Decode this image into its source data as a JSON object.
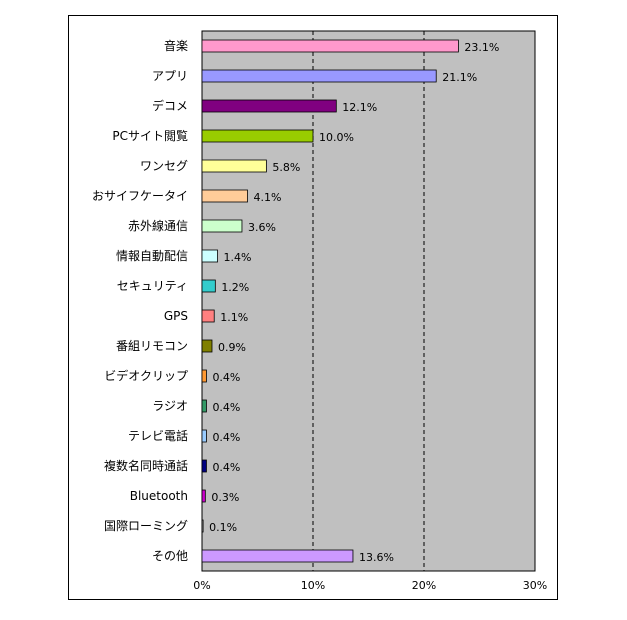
{
  "chart_data": {
    "type": "bar",
    "orientation": "horizontal",
    "title": "",
    "xlabel": "",
    "ylabel": "",
    "xlim": [
      0,
      30
    ],
    "xticks": [
      "0%",
      "10%",
      "20%",
      "30%"
    ],
    "grid": "vertical dashed at 10% and 20%",
    "plot_background": "#c0c0c0",
    "categories": [
      "音楽",
      "アプリ",
      "デコメ",
      "PCサイト閲覧",
      "ワンセグ",
      "おサイフケータイ",
      "赤外線通信",
      "情報自動配信",
      "セキュリティ",
      "GPS",
      "番組リモコン",
      "ビデオクリップ",
      "ラジオ",
      "テレビ電話",
      "複数名同時通話",
      "Bluetooth",
      "国際ローミング",
      "その他"
    ],
    "values": [
      23.1,
      21.1,
      12.1,
      10.0,
      5.8,
      4.1,
      3.6,
      1.4,
      1.2,
      1.1,
      0.9,
      0.4,
      0.4,
      0.4,
      0.4,
      0.3,
      0.1,
      13.6
    ],
    "value_labels": [
      "23.1%",
      "21.1%",
      "12.1%",
      "10.0%",
      "5.8%",
      "4.1%",
      "3.6%",
      "1.4%",
      "1.2%",
      "1.1%",
      "0.9%",
      "0.4%",
      "0.4%",
      "0.4%",
      "0.4%",
      "0.3%",
      "0.1%",
      "13.6%"
    ],
    "colors": [
      "#ff99cc",
      "#9999ff",
      "#800080",
      "#99cc00",
      "#ffff99",
      "#ffcc99",
      "#ccffcc",
      "#ccffff",
      "#33cccc",
      "#ff8080",
      "#808000",
      "#ff9933",
      "#339966",
      "#99ccff",
      "#000080",
      "#cc00cc",
      "#cccccc",
      "#cc99ff"
    ]
  }
}
